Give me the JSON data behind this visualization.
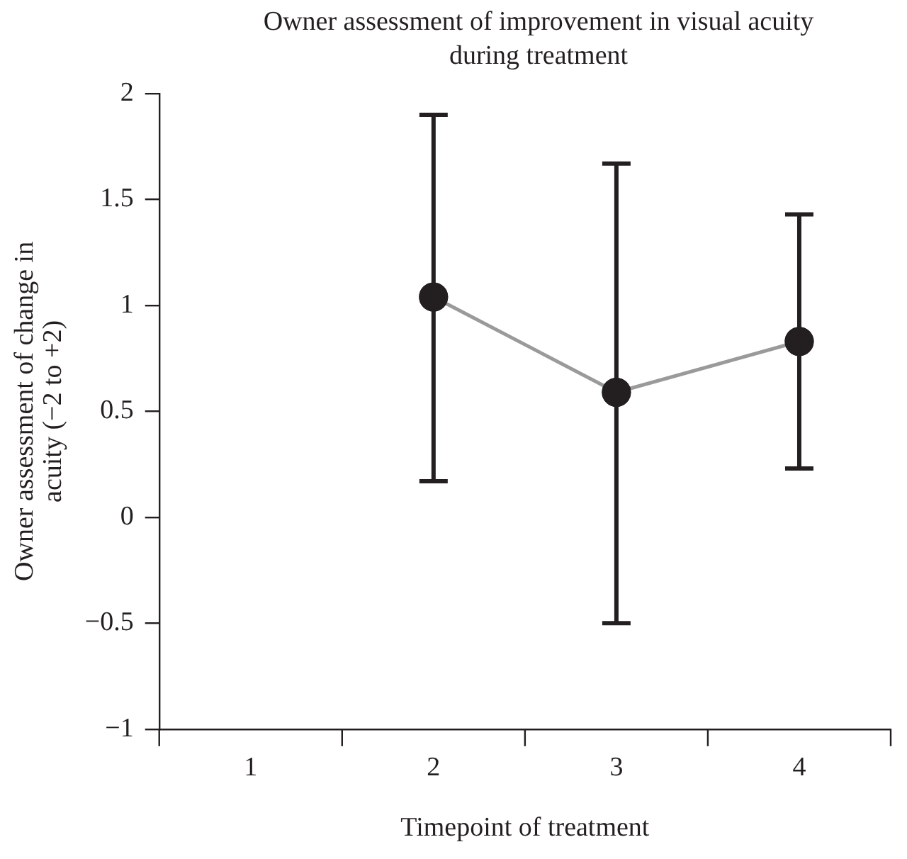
{
  "chart_data": {
    "type": "line",
    "title": "Owner assessment of improvement in visual acuity during treatment",
    "xlabel": "Timepoint of treatment",
    "ylabel": "Owner assessment of change in acuity (−2 to +2)",
    "categories": [
      "1",
      "2",
      "3",
      "4"
    ],
    "series": [
      {
        "color": "#9a9a9a",
        "values": [
          null,
          1.04,
          0.59,
          0.83
        ],
        "errors": [
          null,
          [
            0.17,
            1.9
          ],
          [
            -0.5,
            1.67
          ],
          [
            0.23,
            1.43
          ]
        ]
      }
    ],
    "ylim": [
      -1,
      2
    ],
    "yticks": [
      {
        "value": -1,
        "label": "−1"
      },
      {
        "value": -0.5,
        "label": "−0.5"
      },
      0,
      0.5,
      1,
      1.5,
      2
    ],
    "marker": "circle",
    "grid": false,
    "legend": false
  }
}
